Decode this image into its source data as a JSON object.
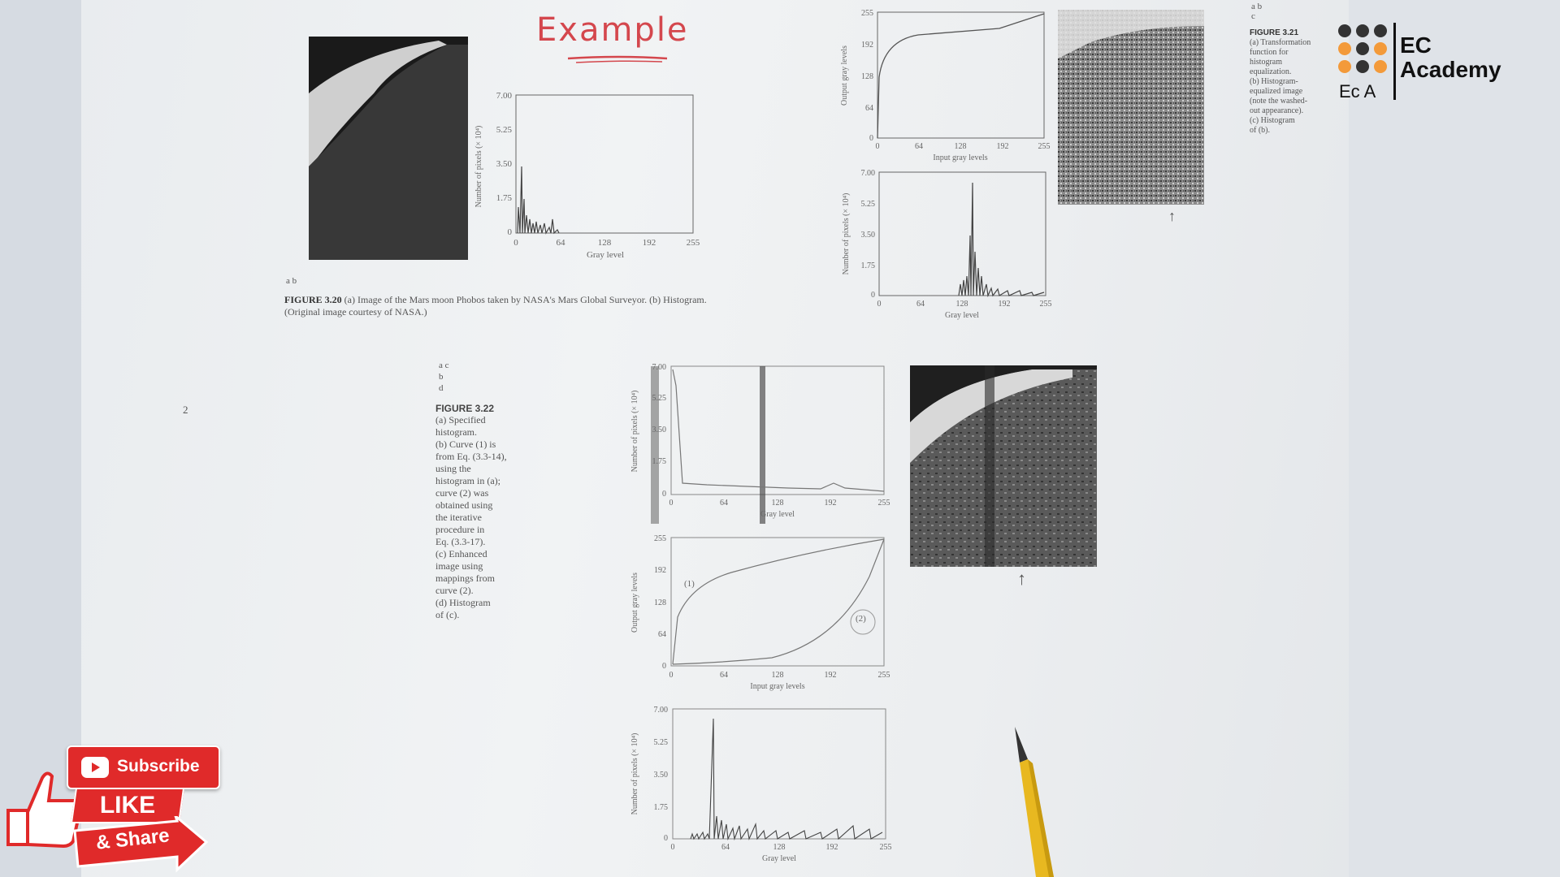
{
  "page_title": "Example",
  "figure_320": {
    "panel_letters": "a b",
    "caption_bold": "FIGURE 3.20",
    "caption_text": "(a) Image of the Mars moon Phobos taken by NASA's Mars Global Surveyor. (b) Histogram. (Original image courtesy of NASA.)",
    "histogram": {
      "y_ticks": [
        "7.00",
        "5.25",
        "3.50",
        "1.75",
        "0"
      ],
      "x_ticks": [
        "0",
        "64",
        "128",
        "192",
        "255"
      ],
      "ylabel": "Number of pixels (× 10⁴)",
      "xlabel": "Gray level"
    }
  },
  "figure_321": {
    "panel_letters": "a b",
    "panel_letter_c": "c",
    "caption_bold": "FIGURE 3.21",
    "caption_lines": [
      "(a) Transformation",
      "function for",
      "histogram",
      "equalization.",
      "(b) Histogram-",
      "equalized image",
      "(note the washed-",
      "out appearance).",
      "(c) Histogram",
      "of (b)."
    ],
    "transform": {
      "y_ticks": [
        "255",
        "192",
        "128",
        "64",
        "0"
      ],
      "x_ticks": [
        "0",
        "64",
        "128",
        "192",
        "255"
      ],
      "ylabel": "Output gray levels",
      "xlabel": "Input gray levels"
    },
    "histogram": {
      "y_ticks": [
        "7.00",
        "5.25",
        "3.50",
        "1.75",
        "0"
      ],
      "x_ticks": [
        "0",
        "64",
        "128",
        "192",
        "255"
      ],
      "ylabel": "Number of pixels (× 10⁴)",
      "xlabel": "Gray level"
    }
  },
  "figure_322": {
    "panel_letters": [
      "a  c",
      "b",
      "d"
    ],
    "caption_bold": "FIGURE 3.22",
    "caption_lines": [
      "(a) Specified",
      "histogram.",
      "(b) Curve (1) is",
      "from Eq. (3.3-14),",
      "using the",
      "histogram in (a);",
      "curve (2) was",
      "obtained using",
      "the iterative",
      "procedure in",
      "Eq. (3.3-17).",
      "(c) Enhanced",
      "image using",
      "mappings from",
      "curve (2).",
      "(d) Histogram",
      "of (c)."
    ],
    "specified": {
      "y_ticks": [
        "7.00",
        "5.25",
        "3.50",
        "1.75",
        "0"
      ],
      "x_ticks": [
        "0",
        "64",
        "128",
        "192",
        "255"
      ],
      "ylabel": "Number of pixels (× 10⁴)",
      "xlabel": "Gray level"
    },
    "curves": {
      "y_ticks": [
        "255",
        "192",
        "128",
        "64",
        "0"
      ],
      "x_ticks": [
        "0",
        "64",
        "128",
        "192",
        "255"
      ],
      "ylabel": "Output gray levels",
      "xlabel": "Input gray levels",
      "curve1_label": "(1)",
      "curve2_label": "(2)"
    },
    "histogram": {
      "y_ticks": [
        "7.00",
        "5.25",
        "3.50",
        "1.75",
        "0"
      ],
      "x_ticks": [
        "0",
        "64",
        "128",
        "192",
        "255"
      ],
      "ylabel": "Number of pixels (× 10⁴)",
      "xlabel": "Gray level"
    }
  },
  "margin_scribble": "2",
  "logo": {
    "line1": "EC",
    "line2": "Academy",
    "short": "Ec A",
    "dot_colors": [
      "#333333",
      "#333333",
      "#333333",
      "#f39a3a",
      "#333333",
      "#f39a3a",
      "#f39a3a",
      "#333333",
      "#f39a3a"
    ]
  },
  "social": {
    "subscribe": "Subscribe",
    "like": "LIKE",
    "share": "& Share",
    "subscribe_color": "#e02a2a",
    "like_color": "#e02a2a"
  }
}
